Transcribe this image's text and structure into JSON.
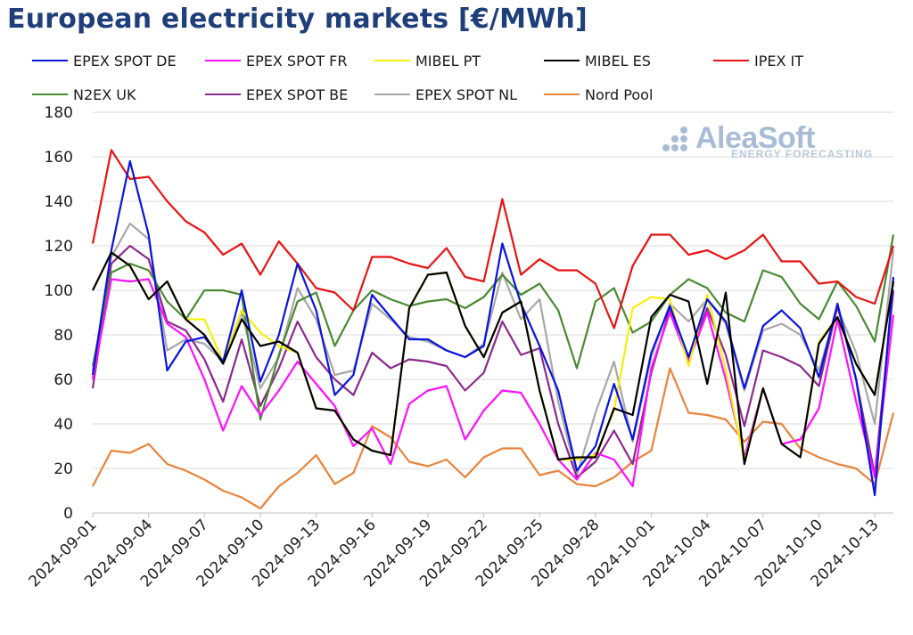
{
  "chart_data": {
    "type": "line",
    "title": "European electricity markets [€/MWh]",
    "xlabel": "",
    "ylabel": "",
    "ylim": [
      0,
      180
    ],
    "yticks": [
      0,
      20,
      40,
      60,
      80,
      100,
      120,
      140,
      160,
      180
    ],
    "xtick_labels": [
      "2024-09-01",
      "2024-09-04",
      "2024-09-07",
      "2024-09-10",
      "2024-09-13",
      "2024-09-16",
      "2024-09-19",
      "2024-09-22",
      "2024-09-25",
      "2024-09-28",
      "2024-10-01",
      "2024-10-04",
      "2024-10-07",
      "2024-10-10",
      "2024-10-13"
    ],
    "x": [
      "2024-09-01",
      "2024-09-02",
      "2024-09-03",
      "2024-09-04",
      "2024-09-05",
      "2024-09-06",
      "2024-09-07",
      "2024-09-08",
      "2024-09-09",
      "2024-09-10",
      "2024-09-11",
      "2024-09-12",
      "2024-09-13",
      "2024-09-14",
      "2024-09-15",
      "2024-09-16",
      "2024-09-17",
      "2024-09-18",
      "2024-09-19",
      "2024-09-20",
      "2024-09-21",
      "2024-09-22",
      "2024-09-23",
      "2024-09-24",
      "2024-09-25",
      "2024-09-26",
      "2024-09-27",
      "2024-09-28",
      "2024-09-29",
      "2024-09-30",
      "2024-10-01",
      "2024-10-02",
      "2024-10-03",
      "2024-10-04",
      "2024-10-05",
      "2024-10-06",
      "2024-10-07",
      "2024-10-08",
      "2024-10-09",
      "2024-10-10",
      "2024-10-11",
      "2024-10-12",
      "2024-10-13",
      "2024-10-14"
    ],
    "series": [
      {
        "name": "EPEX SPOT DE",
        "color": "#0a14e0",
        "values": [
          62,
          118,
          158,
          125,
          64,
          77,
          79,
          68,
          100,
          59,
          80,
          112,
          91,
          53,
          62,
          98,
          88,
          78,
          78,
          73,
          70,
          75,
          121,
          94,
          75,
          55,
          19,
          30,
          58,
          33,
          72,
          93,
          70,
          96,
          86,
          56,
          84,
          91,
          83,
          61,
          94,
          60,
          8,
          106
        ]
      },
      {
        "name": "EPEX SPOT FR",
        "color": "#ff10ff",
        "values": [
          60,
          105,
          104,
          105,
          85,
          79,
          60,
          37,
          57,
          44,
          55,
          68,
          58,
          48,
          30,
          38,
          22,
          49,
          55,
          57,
          33,
          46,
          55,
          54,
          40,
          24,
          15,
          27,
          24,
          12,
          65,
          90,
          68,
          90,
          60,
          25,
          56,
          31,
          33,
          47,
          87,
          50,
          16,
          89
        ]
      },
      {
        "name": "MIBEL PT",
        "color": "#f5f00a",
        "values": [
          100,
          117,
          111,
          96,
          104,
          87,
          87,
          68,
          91,
          81,
          75,
          72,
          47,
          46,
          33,
          28,
          26,
          92,
          107,
          108,
          84,
          70,
          90,
          95,
          55,
          24,
          24,
          26,
          46,
          92,
          97,
          96,
          66,
          98,
          64,
          23,
          56,
          31,
          25,
          77,
          88,
          67,
          53,
          104
        ]
      },
      {
        "name": "MIBEL ES",
        "color": "#000000",
        "values": [
          100,
          117,
          111,
          96,
          104,
          87,
          80,
          67,
          87,
          75,
          77,
          72,
          47,
          46,
          33,
          28,
          26,
          92,
          107,
          108,
          84,
          70,
          90,
          95,
          55,
          24,
          25,
          25,
          47,
          44,
          88,
          98,
          95,
          58,
          99,
          22,
          56,
          31,
          25,
          76,
          88,
          67,
          53,
          104
        ]
      },
      {
        "name": "IPEX IT",
        "color": "#e81414",
        "values": [
          121,
          163,
          150,
          151,
          140,
          131,
          126,
          116,
          121,
          107,
          122,
          112,
          101,
          99,
          91,
          115,
          115,
          112,
          110,
          119,
          106,
          104,
          141,
          107,
          114,
          109,
          109,
          103,
          83,
          111,
          125,
          125,
          116,
          118,
          114,
          118,
          125,
          113,
          113,
          103,
          104,
          97,
          94,
          120
        ]
      },
      {
        "name": "N2EX UK",
        "color": "#4a8a32",
        "values": [
          66,
          108,
          112,
          109,
          95,
          87,
          100,
          100,
          98,
          42,
          71,
          95,
          99,
          75,
          91,
          100,
          96,
          93,
          95,
          96,
          92,
          97,
          107,
          98,
          103,
          91,
          65,
          95,
          101,
          81,
          86,
          98,
          105,
          101,
          90,
          86,
          109,
          106,
          94,
          87,
          104,
          93,
          77,
          125
        ]
      },
      {
        "name": "EPEX SPOT BE",
        "color": "#8c2a8c",
        "values": [
          56,
          112,
          120,
          114,
          86,
          82,
          69,
          50,
          78,
          48,
          65,
          86,
          70,
          60,
          53,
          72,
          65,
          69,
          68,
          66,
          55,
          63,
          86,
          71,
          74,
          40,
          16,
          23,
          37,
          22,
          63,
          92,
          70,
          92,
          71,
          39,
          73,
          70,
          66,
          57,
          93,
          60,
          17,
          100
        ]
      },
      {
        "name": "EPEX SPOT NL",
        "color": "#a8a8a8",
        "values": [
          64,
          115,
          130,
          123,
          73,
          78,
          76,
          68,
          90,
          56,
          70,
          101,
          87,
          62,
          64,
          94,
          87,
          79,
          77,
          73,
          70,
          76,
          108,
          87,
          96,
          50,
          17,
          45,
          68,
          32,
          70,
          94,
          86,
          96,
          85,
          55,
          82,
          85,
          80,
          64,
          92,
          72,
          40,
          118
        ]
      },
      {
        "name": "Nord Pool",
        "color": "#e8843c",
        "values": [
          12,
          28,
          27,
          31,
          22,
          19,
          15,
          10,
          7,
          2,
          12,
          18,
          26,
          13,
          18,
          39,
          34,
          23,
          21,
          24,
          16,
          25,
          29,
          29,
          17,
          19,
          13,
          12,
          16,
          23,
          28,
          65,
          45,
          44,
          42,
          32,
          41,
          40,
          29,
          25,
          22,
          20,
          13,
          45
        ]
      }
    ]
  },
  "logo": {
    "name": "AleaSoft",
    "tagline": "ENERGY FORECASTING"
  }
}
